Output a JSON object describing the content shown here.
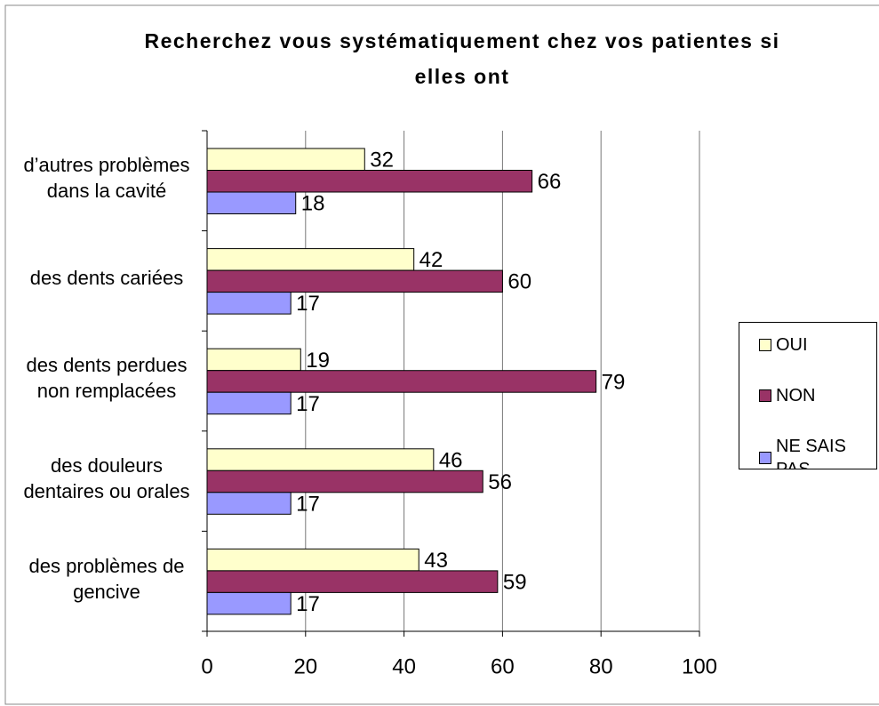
{
  "chart_data": {
    "type": "bar",
    "orientation": "horizontal",
    "title": "Recherchez vous systématiquement chez vos patientes si elles ont",
    "categories": [
      "d’autres problèmes dans la cavité",
      "des dents cariées",
      "des dents perdues non remplacées",
      "des douleurs dentaires ou orales",
      "des problèmes de gencive"
    ],
    "series": [
      {
        "name": "OUI",
        "color": "#ffffcc",
        "values": [
          32,
          42,
          19,
          46,
          43
        ]
      },
      {
        "name": "NON",
        "color": "#993366",
        "values": [
          66,
          60,
          79,
          56,
          59
        ]
      },
      {
        "name": "NE SAIS PAS",
        "color": "#9999ff",
        "values": [
          18,
          17,
          17,
          17,
          17
        ]
      }
    ],
    "xlim": [
      0,
      100
    ],
    "xticks": [
      0,
      20,
      40,
      60,
      80,
      100
    ],
    "grid": true,
    "legend": "right"
  }
}
